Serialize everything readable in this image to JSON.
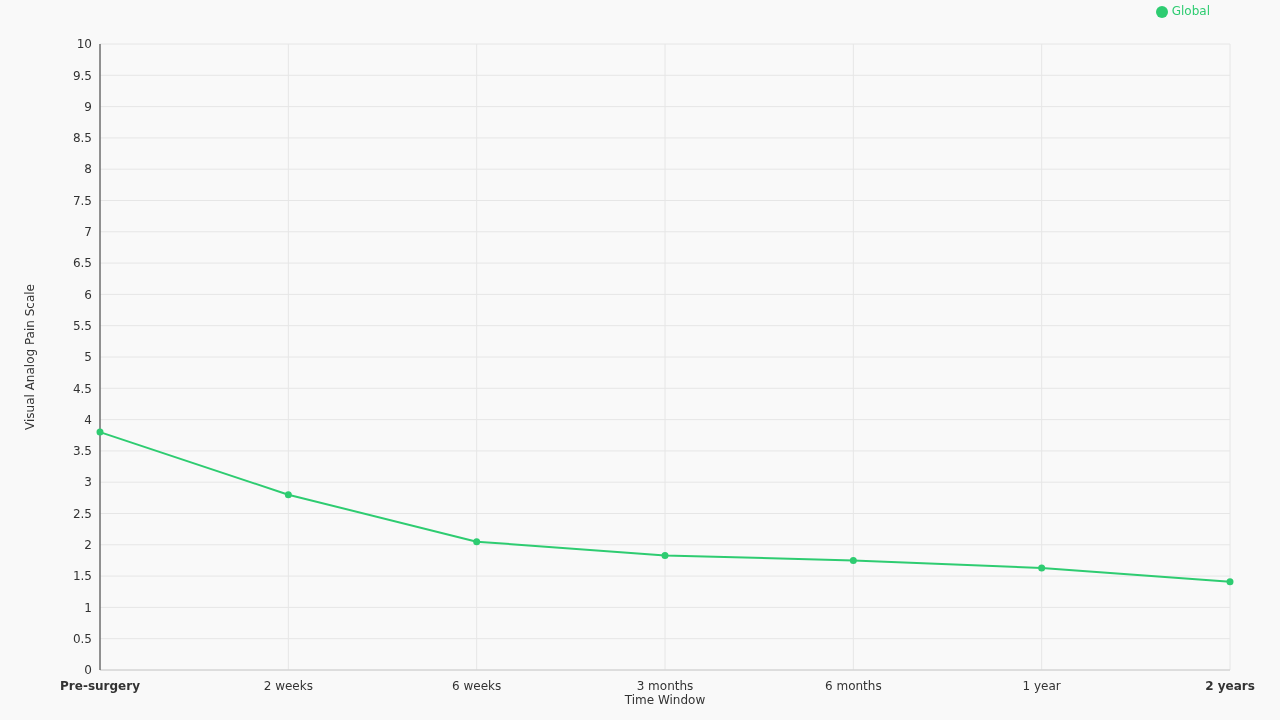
{
  "chart_data": {
    "type": "line",
    "xlabel": "Time Window",
    "ylabel": "Visual Analog Pain Scale",
    "categories": [
      "Pre-surgery",
      "2 weeks",
      "6 weeks",
      "3 months",
      "6 months",
      "1 year",
      "2 years"
    ],
    "series": [
      {
        "name": "Global",
        "color": "#2ecc71",
        "values": [
          3.8,
          2.8,
          2.05,
          1.83,
          1.75,
          1.63,
          1.41
        ]
      }
    ],
    "ylim": [
      0,
      10
    ],
    "yticks": [
      0,
      0.5,
      1,
      1.5,
      2,
      2.5,
      3,
      3.5,
      4,
      4.5,
      5,
      5.5,
      6,
      6.5,
      7,
      7.5,
      8,
      8.5,
      9,
      9.5,
      10
    ],
    "grid": true,
    "legend": "top right",
    "marker": "circle",
    "line_style": "solid"
  }
}
